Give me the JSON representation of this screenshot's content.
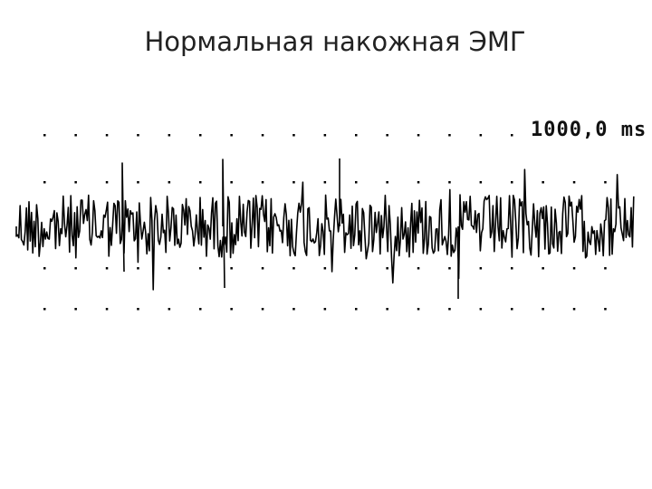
{
  "slide": {
    "title": "Нормальная накожная ЭМГ",
    "scale_label": "1000,0 ms"
  }
}
